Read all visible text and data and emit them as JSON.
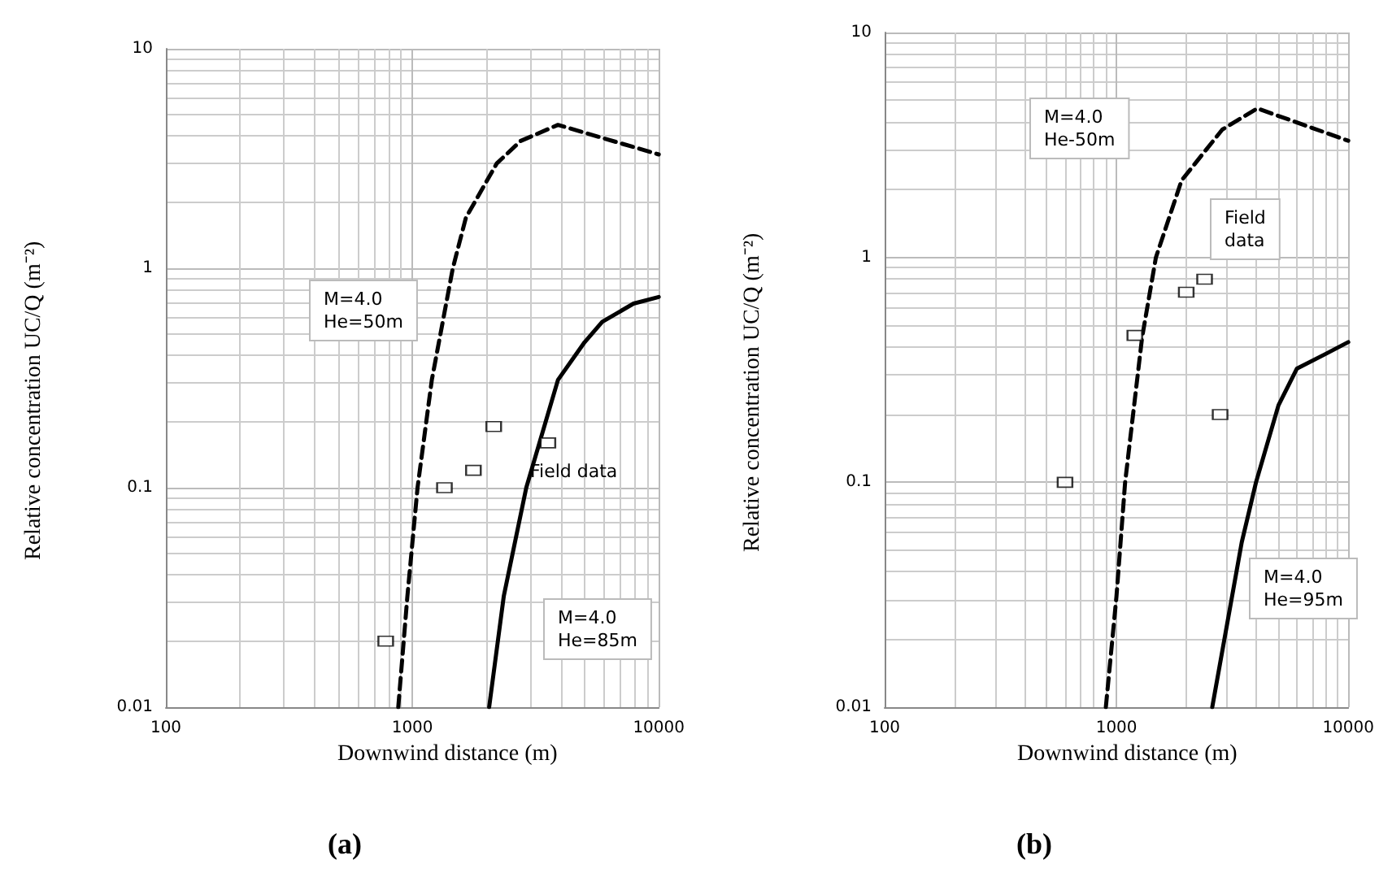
{
  "chart_data": [
    {
      "type": "line",
      "title": "(a)",
      "xlabel": "Downwind distance (m)",
      "ylabel": "Relative concentration UC/Q (m⁻²)",
      "log": "xy",
      "grid": true,
      "xlim": [
        100,
        10000
      ],
      "xticks": [
        100,
        1000,
        10000
      ],
      "ylim": [
        0.01,
        10
      ],
      "yticks": [
        0.01,
        0.1,
        1,
        10
      ],
      "annotations": [
        "M=4.0\nHe=50m",
        "Field data",
        "M=4.0\nHe=85m"
      ],
      "series": [
        {
          "color": "#000000",
          "line_style": "dashed",
          "marker": "none",
          "x": [
            877,
            955,
            1050,
            1200,
            1460,
            1650,
            2200,
            2750,
            3900,
            10000
          ],
          "values": [
            0.01,
            0.032,
            0.1,
            0.31,
            1,
            1.7,
            3.0,
            3.8,
            4.5,
            3.3
          ]
        },
        {
          "color": "#000000",
          "line_style": "solid",
          "marker": "none",
          "x": [
            2050,
            2350,
            2900,
            3900,
            5000,
            5900,
            7900,
            10000
          ],
          "values": [
            0.01,
            0.032,
            0.1,
            0.31,
            0.46,
            0.57,
            0.69,
            0.74
          ]
        },
        {
          "type": "scatter",
          "color": "#000000",
          "marker": "square",
          "x": [
            780,
            1350,
            1770,
            2140,
            3550
          ],
          "values": [
            0.02,
            0.1,
            0.12,
            0.19,
            0.16
          ]
        }
      ]
    },
    {
      "type": "line",
      "title": "(b)",
      "xlabel": "Downwind distance (m)",
      "ylabel": "Relative concentration UC/Q (m⁻²)",
      "log": "xy",
      "grid": true,
      "xlim": [
        100,
        10000
      ],
      "xticks": [
        100,
        1000,
        10000
      ],
      "ylim": [
        0.01,
        10
      ],
      "yticks": [
        0.01,
        0.1,
        1,
        10
      ],
      "annotations": [
        "M=4.0\nHe-50m",
        "Field\ndata",
        "M=4.0\nHe=95m"
      ],
      "series": [
        {
          "color": "#000000",
          "line_style": "dashed",
          "marker": "none",
          "x": [
            900,
            1000,
            1090,
            1290,
            1480,
            1910,
            2860,
            4050,
            10000
          ],
          "values": [
            0.01,
            0.031,
            0.1,
            0.44,
            1.0,
            2.2,
            3.7,
            4.6,
            3.3
          ]
        },
        {
          "color": "#000000",
          "line_style": "solid",
          "marker": "none",
          "x": [
            2590,
            3470,
            4000,
            5000,
            6000,
            7900,
            10000
          ],
          "values": [
            0.01,
            0.054,
            0.1,
            0.22,
            0.32,
            0.37,
            0.42
          ]
        },
        {
          "type": "scatter",
          "color": "#000000",
          "marker": "square",
          "x": [
            600,
            1200,
            2000,
            2400,
            2800
          ],
          "values": [
            0.1,
            0.45,
            0.7,
            0.8,
            0.2
          ]
        }
      ]
    }
  ]
}
